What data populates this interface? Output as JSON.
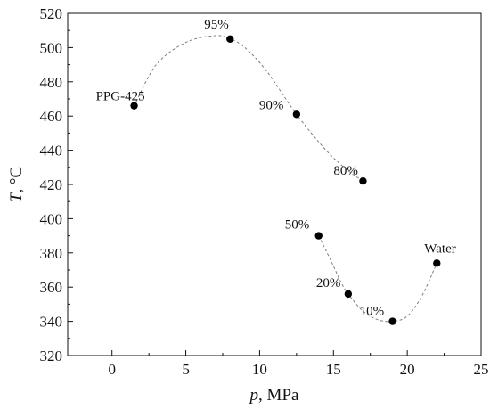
{
  "chart_data": {
    "type": "scatter",
    "title": "",
    "xlabel": {
      "var": "p",
      "unit": ", MPa"
    },
    "ylabel": {
      "var": "T",
      "unit": ", °C"
    },
    "xlim": [
      -3,
      25
    ],
    "ylim": [
      320,
      520
    ],
    "xticks": [
      0,
      5,
      10,
      15,
      20,
      25
    ],
    "yticks": [
      320,
      340,
      360,
      380,
      400,
      420,
      440,
      460,
      480,
      500,
      520
    ],
    "grid": false,
    "legend": "none",
    "points": [
      {
        "label": "PPG-425",
        "x": 1.5,
        "y": 466
      },
      {
        "label": "95%",
        "x": 8.0,
        "y": 505
      },
      {
        "label": "90%",
        "x": 12.5,
        "y": 461
      },
      {
        "label": "80%",
        "x": 17.0,
        "y": 422
      },
      {
        "label": "50%",
        "x": 14.0,
        "y": 390
      },
      {
        "label": "20%",
        "x": 16.0,
        "y": 356
      },
      {
        "label": "10%",
        "x": 19.0,
        "y": 340
      },
      {
        "label": "Water",
        "x": 22.0,
        "y": 374
      }
    ],
    "trend_curves": [
      {
        "style": "dashed",
        "x": [
          1.5,
          3,
          5,
          7,
          8,
          9,
          10.5,
          12.5,
          14.5,
          16,
          17
        ],
        "y": [
          466,
          490,
          503,
          507,
          505,
          500,
          486,
          461,
          440,
          428,
          422
        ]
      },
      {
        "style": "dashed",
        "x": [
          14.0,
          14.8,
          15.5,
          16.0,
          17.0,
          18.0,
          19.0,
          20.0,
          21.0,
          22.0
        ],
        "y": [
          390,
          376,
          363,
          356,
          346,
          341,
          340,
          343,
          355,
          374
        ]
      }
    ],
    "colors": {
      "marker": "#000000",
      "curve": "#7f7f7f",
      "axis": "#111111"
    }
  }
}
